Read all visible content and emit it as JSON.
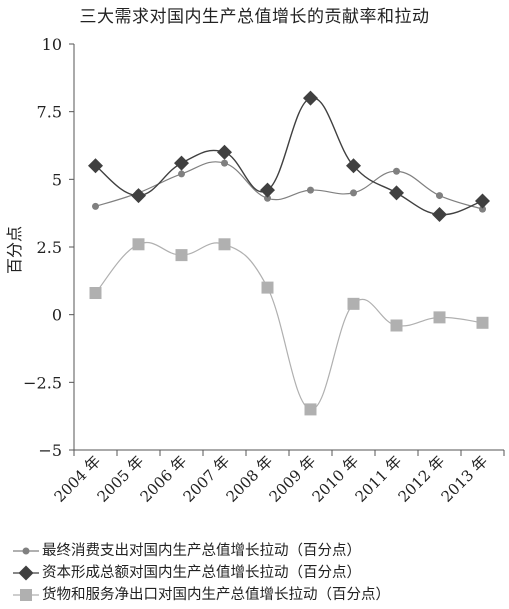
{
  "chart_data": {
    "type": "line",
    "title": "三大需求对国内生产总值增长的贡献率和拉动",
    "ylabel": "百分点",
    "xlabel": "",
    "ylim": [
      -5,
      10
    ],
    "yticks": [
      10,
      7.5,
      5,
      2.5,
      0,
      -2.5,
      -5
    ],
    "ytick_labels": [
      "10",
      "7.5",
      "5",
      "2.5",
      "0",
      "−2.5",
      "−5"
    ],
    "categories": [
      "2004 年",
      "2005 年",
      "2006 年",
      "2007 年",
      "2008 年",
      "2009 年",
      "2010 年",
      "2011 年",
      "2012 年",
      "2013 年"
    ],
    "grid": false,
    "legend_position": "bottom",
    "series": [
      {
        "name": "最终消费支出对国内生产总值增长拉动（百分点）",
        "marker": "circle",
        "color": "#808080",
        "values": [
          4.0,
          4.5,
          5.2,
          5.6,
          4.3,
          4.6,
          4.5,
          5.3,
          4.4,
          3.9
        ]
      },
      {
        "name": "资本形成总额对国内生产总值增长拉动（百分点）",
        "marker": "diamond",
        "color": "#404040",
        "values": [
          5.5,
          4.4,
          5.6,
          6.0,
          4.6,
          8.0,
          5.5,
          4.5,
          3.7,
          4.2
        ]
      },
      {
        "name": "货物和服务净出口对国内生产总值增长拉动（百分点）",
        "marker": "square",
        "color": "#b0b0b0",
        "values": [
          0.8,
          2.6,
          2.2,
          2.6,
          1.0,
          -3.5,
          0.4,
          -0.4,
          -0.1,
          -0.3
        ]
      }
    ]
  }
}
